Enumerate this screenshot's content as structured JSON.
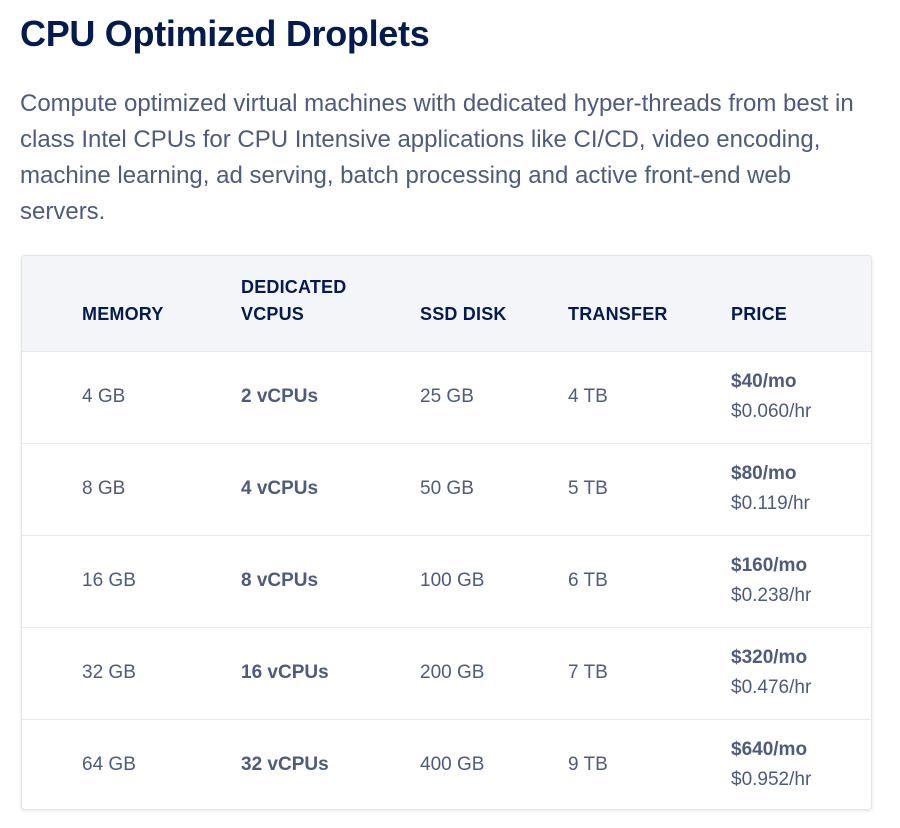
{
  "page": {
    "title": "CPU Optimized Droplets",
    "description": "Compute optimized virtual machines with dedicated hyper-threads from best in class Intel CPUs for CPU Intensive applications like CI/CD, video encoding, machine learning, ad serving, batch processing and active front-end web servers."
  },
  "table": {
    "headers": {
      "memory": "MEMORY",
      "vcpus_line1": "DEDICATED",
      "vcpus_line2": "VCPUS",
      "disk": "SSD DISK",
      "transfer": "TRANSFER",
      "price": "PRICE"
    },
    "rows": [
      {
        "memory": "4 GB",
        "vcpus": "2 vCPUs",
        "disk": "25 GB",
        "transfer": "4 TB",
        "price_monthly": "$40/mo",
        "price_hourly": "$0.060/hr"
      },
      {
        "memory": "8 GB",
        "vcpus": "4 vCPUs",
        "disk": "50 GB",
        "transfer": "5 TB",
        "price_monthly": "$80/mo",
        "price_hourly": "$0.119/hr"
      },
      {
        "memory": "16 GB",
        "vcpus": "8 vCPUs",
        "disk": "100 GB",
        "transfer": "6 TB",
        "price_monthly": "$160/mo",
        "price_hourly": "$0.238/hr"
      },
      {
        "memory": "32 GB",
        "vcpus": "16 vCPUs",
        "disk": "200 GB",
        "transfer": "7 TB",
        "price_monthly": "$320/mo",
        "price_hourly": "$0.476/hr"
      },
      {
        "memory": "64 GB",
        "vcpus": "32 vCPUs",
        "disk": "400 GB",
        "transfer": "9 TB",
        "price_monthly": "$640/mo",
        "price_hourly": "$0.952/hr"
      }
    ]
  },
  "colors": {
    "heading": "#031b4e",
    "body_text": "#4d5b7c",
    "header_background": "#f3f5f9",
    "border": "#e2e6ee"
  }
}
